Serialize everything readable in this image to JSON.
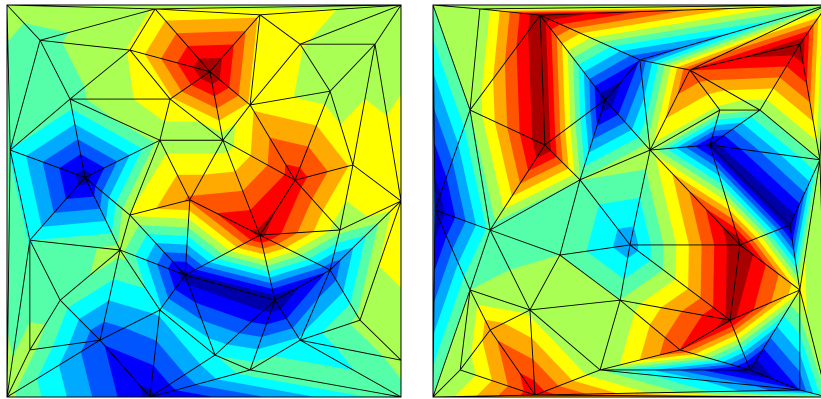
{
  "chart_data": [
    {
      "type": "tricontour",
      "colormap": "jet",
      "levels": 12,
      "edge_color": "#000000",
      "xlim": [
        0,
        1
      ],
      "ylim": [
        0,
        1
      ],
      "x": [
        0,
        1,
        0,
        1,
        0.515,
        0.376,
        0.084,
        0.312,
        0.642,
        0.744,
        0.934,
        0.16,
        0.414,
        0.617,
        0.82,
        0.008,
        0.198,
        0.388,
        0.548,
        0.731,
        0.878,
        0.312,
        0.464,
        0.642,
        0.845,
        1,
        0.058,
        0.287,
        0.452,
        0.68,
        0.82,
        0.135,
        0.236,
        0.388,
        0.528,
        0.744,
        0.896,
        0.363,
        0.617,
        0.058,
        1
      ],
      "y": [
        0,
        0,
        1,
        1,
        0.83,
        0.99,
        0.91,
        0.885,
        0.975,
        0.9,
        0.9,
        0.76,
        0.76,
        0.745,
        0.78,
        0.63,
        0.56,
        0.655,
        0.655,
        0.553,
        0.592,
        0.464,
        0.503,
        0.413,
        0.426,
        0.5,
        0.4,
        0.375,
        0.311,
        0.247,
        0.324,
        0.247,
        0.145,
        0.222,
        0.107,
        0.145,
        0.196,
        0,
        0.069,
        0.12,
        0.094
      ],
      "values": [
        0.5,
        0.45,
        0.5,
        0.5,
        0.9,
        0.55,
        0.45,
        0.55,
        0.6,
        0.55,
        0.5,
        0.45,
        0.6,
        0.6,
        0.5,
        0.4,
        0.08,
        0.5,
        0.5,
        0.8,
        0.6,
        0.55,
        0.7,
        0.85,
        0.5,
        0.6,
        0.4,
        0.5,
        0.08,
        0.05,
        0.2,
        0.45,
        0.2,
        0.35,
        0.4,
        0.35,
        0.5,
        0.1,
        0.45,
        0.5,
        0.5
      ]
    },
    {
      "type": "tricontour",
      "colormap": "jet",
      "levels": 12,
      "edge_color": "#000000",
      "xlim": [
        0,
        1
      ],
      "ylim": [
        0,
        1
      ],
      "x": [
        0,
        1,
        0,
        1,
        0.272,
        0.119,
        0.437,
        0.525,
        0.652,
        0.728,
        0.703,
        0.931,
        0.83,
        0.284,
        0.094,
        0.005,
        0.145,
        0.373,
        0.551,
        0.779,
        0.906,
        0.982,
        0.5,
        0.322,
        0.094,
        0.246,
        0.145,
        0.475,
        0.627,
        0.754,
        0.931,
        0.805,
        0.931,
        0.259,
        0.424,
        0.069
      ],
      "y": [
        0,
        0,
        1,
        1,
        0.974,
        0.99,
        0.758,
        0.86,
        0.834,
        0.732,
        0.643,
        0.9,
        0.732,
        0.643,
        0.732,
        0.477,
        0.426,
        0.554,
        0.63,
        0.388,
        0.439,
        0.605,
        0.388,
        0.362,
        0.273,
        0.222,
        0.171,
        0.247,
        0.12,
        0.196,
        0.273,
        0.069,
        0.018,
        0.005,
        0.069,
        0.069
      ],
      "values": [
        0.5,
        0.5,
        0.5,
        0.5,
        0.95,
        0.5,
        0.05,
        0.2,
        0.8,
        0.55,
        0.08,
        0.95,
        0.5,
        0.95,
        0.5,
        0.05,
        0.45,
        0.5,
        0.55,
        0.95,
        0.05,
        0.5,
        0.3,
        0.5,
        0.5,
        0.55,
        0.7,
        0.5,
        0.8,
        0.9,
        0.6,
        0.05,
        0.2,
        0.85,
        0.5,
        0.5
      ]
    }
  ]
}
